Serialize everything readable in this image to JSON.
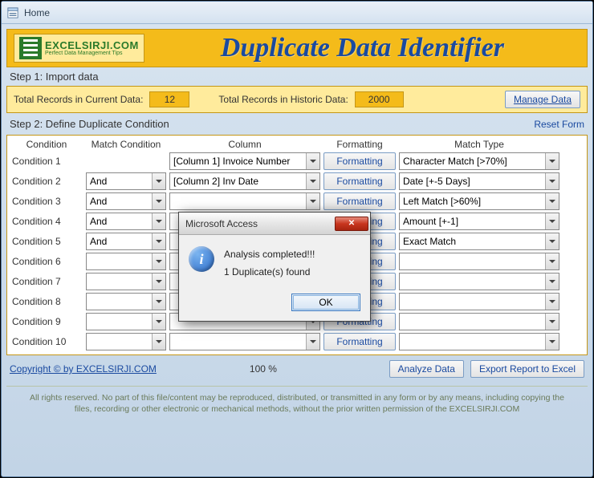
{
  "window": {
    "title": "Home"
  },
  "header": {
    "logo_main": "EXCELSIRJI.COM",
    "logo_sub": "Perfect Data Management Tips",
    "title": "Duplicate Data Identifier"
  },
  "step1": {
    "label": "Step 1: Import data",
    "current_label": "Total Records in Current Data:",
    "current_value": "12",
    "historic_label": "Total Records in Historic Data:",
    "historic_value": "2000",
    "manage_btn": "Manage Data"
  },
  "step2": {
    "label": "Step 2: Define Duplicate Condition",
    "reset": "Reset Form",
    "headers": {
      "condition": "Condition",
      "match": "Match Condition",
      "column": "Column",
      "formatting": "Formatting",
      "type": "Match Type"
    },
    "formatting_btn": "Formatting",
    "rows": [
      {
        "cond": "Condition 1",
        "match": "",
        "column": "[Column 1] Invoice Number",
        "type": "Character Match [>70%]"
      },
      {
        "cond": "Condition 2",
        "match": "And",
        "column": "[Column 2] Inv Date",
        "type": "Date [+-5 Days]"
      },
      {
        "cond": "Condition 3",
        "match": "And",
        "column": "",
        "type": "Left Match [>60%]"
      },
      {
        "cond": "Condition 4",
        "match": "And",
        "column": "",
        "type": "Amount [+-1]"
      },
      {
        "cond": "Condition 5",
        "match": "And",
        "column": "",
        "type": "Exact Match"
      },
      {
        "cond": "Condition 6",
        "match": "",
        "column": "",
        "type": ""
      },
      {
        "cond": "Condition 7",
        "match": "",
        "column": "",
        "type": ""
      },
      {
        "cond": "Condition 8",
        "match": "",
        "column": "",
        "type": ""
      },
      {
        "cond": "Condition 9",
        "match": "",
        "column": "",
        "type": ""
      },
      {
        "cond": "Condition 10",
        "match": "",
        "column": "",
        "type": ""
      }
    ]
  },
  "footer": {
    "copyright": "Copyright © by EXCELSIRJI.COM",
    "pct": "100 %",
    "analyze": "Analyze Data",
    "export": "Export Report to Excel",
    "disclaimer": "All rights reserved. No part of this file/content may be reproduced, distributed, or transmitted in any form or by any means, including copying the files, recording or other electronic or mechanical methods, without the prior written permission of the EXCELSIRJI.COM"
  },
  "modal": {
    "title": "Microsoft Access",
    "line1": "Analysis completed!!!",
    "line2": "1 Duplicate(s) found",
    "ok": "OK"
  },
  "colors": {
    "banner": "#f4bb1a",
    "banner_light": "#ffeb9c",
    "accent": "#1a4aa0"
  }
}
